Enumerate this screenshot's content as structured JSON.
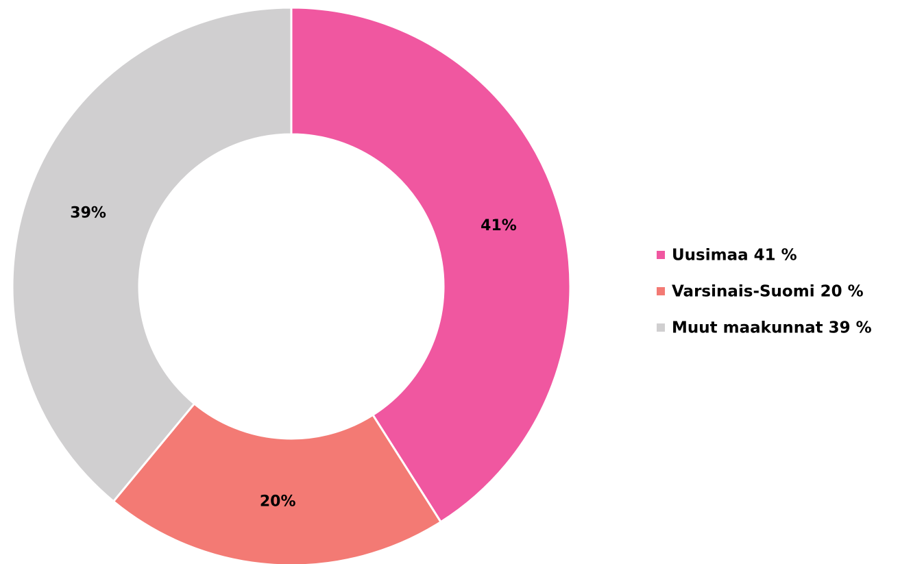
{
  "chart_data": {
    "type": "pie",
    "categories": [
      "Uusimaa 41 %",
      "Varsinais-Suomi 20 %",
      "Muut maakunnat 39 %"
    ],
    "values": [
      41,
      20,
      39
    ],
    "value_labels": [
      "41%",
      "20%",
      "39%"
    ],
    "colors": [
      "#f057a0",
      "#f37a74",
      "#d0cfd0"
    ],
    "legend": "right"
  }
}
